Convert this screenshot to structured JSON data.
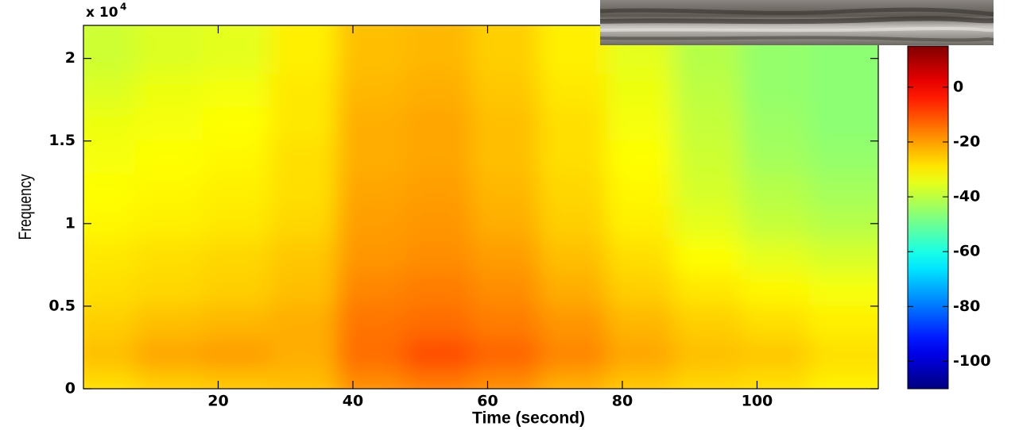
{
  "chart_data": {
    "type": "heatmap",
    "x_label": "Time (second)",
    "y_label": "Frequency",
    "y_multiplier": "x 10",
    "y_multiplier_exponent": "4",
    "xlim": [
      0,
      118
    ],
    "ylim": [
      0,
      2.2
    ],
    "xticks": [
      20,
      40,
      60,
      80,
      100
    ],
    "yticks": [
      0,
      0.5,
      1,
      1.5,
      2
    ],
    "colormap": "jet",
    "clim": [
      -110,
      15
    ],
    "cticks": [
      0,
      -20,
      -40,
      -60,
      -80,
      -100
    ],
    "x": [
      5,
      15,
      25,
      35,
      45,
      55,
      65,
      75,
      85,
      95,
      105,
      115
    ],
    "y": [
      0.1,
      0.3,
      0.5,
      0.7,
      0.9,
      1.1,
      1.3,
      1.5,
      1.7,
      1.9,
      2.1
    ],
    "values": [
      [
        -28,
        -26,
        -25,
        -24,
        -18,
        -16,
        -18,
        -22,
        -25,
        -27,
        -28,
        -30
      ],
      [
        -24,
        -21,
        -20,
        -22,
        -14,
        -10,
        -13,
        -17,
        -21,
        -24,
        -25,
        -28
      ],
      [
        -26,
        -24,
        -23,
        -22,
        -15,
        -14,
        -16,
        -19,
        -23,
        -26,
        -28,
        -30
      ],
      [
        -28,
        -27,
        -26,
        -24,
        -17,
        -16,
        -18,
        -22,
        -26,
        -29,
        -31,
        -33
      ],
      [
        -29,
        -28,
        -27,
        -25,
        -19,
        -18,
        -20,
        -24,
        -28,
        -32,
        -35,
        -37
      ],
      [
        -31,
        -30,
        -29,
        -27,
        -20,
        -19,
        -22,
        -26,
        -30,
        -35,
        -39,
        -41
      ],
      [
        -32,
        -31,
        -30,
        -28,
        -21,
        -20,
        -23,
        -27,
        -31,
        -37,
        -41,
        -43
      ],
      [
        -33,
        -32,
        -31,
        -28,
        -22,
        -21,
        -24,
        -28,
        -32,
        -38,
        -43,
        -45
      ],
      [
        -34,
        -33,
        -32,
        -29,
        -22,
        -21,
        -24,
        -28,
        -33,
        -39,
        -44,
        -46
      ],
      [
        -36,
        -34,
        -33,
        -29,
        -23,
        -22,
        -25,
        -29,
        -34,
        -40,
        -45,
        -46
      ],
      [
        -38,
        -36,
        -35,
        -30,
        -24,
        -23,
        -26,
        -30,
        -35,
        -41,
        -45,
        -46
      ]
    ]
  }
}
